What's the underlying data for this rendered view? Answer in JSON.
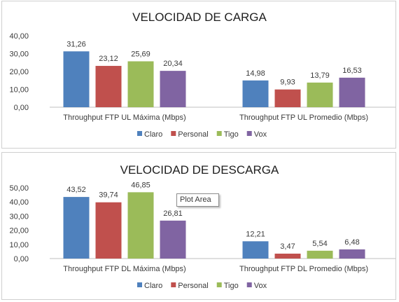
{
  "colors": {
    "Claro": "#4f81bd",
    "Personal": "#c0504d",
    "Tigo": "#9bbb59",
    "Vox": "#8064a2"
  },
  "tooltip": {
    "text": "Plot Area"
  },
  "chart_data": [
    {
      "type": "bar",
      "title": "VELOCIDAD DE CARGA",
      "categories": [
        "Throughput FTP UL Máxima (Mbps)",
        "Throughput FTP UL Promedio (Mbps)"
      ],
      "series": [
        {
          "name": "Claro",
          "values": [
            31.26,
            14.98
          ],
          "labels": [
            "31,26",
            "14,98"
          ]
        },
        {
          "name": "Personal",
          "values": [
            23.12,
            9.93
          ],
          "labels": [
            "23,12",
            "9,93"
          ]
        },
        {
          "name": "Tigo",
          "values": [
            25.69,
            13.79
          ],
          "labels": [
            "25,69",
            "13,79"
          ]
        },
        {
          "name": "Vox",
          "values": [
            20.34,
            16.53
          ],
          "labels": [
            "20,34",
            "16,53"
          ]
        }
      ],
      "ylim": [
        0,
        40
      ],
      "yticks": [
        "0,00",
        "10,00",
        "20,00",
        "30,00",
        "40,00"
      ],
      "grid": false,
      "legend": "bottom"
    },
    {
      "type": "bar",
      "title": "VELOCIDAD DE DESCARGA",
      "categories": [
        "Throughput FTP DL Máxima (Mbps)",
        "Throughput FTP DL Promedio (Mbps)"
      ],
      "series": [
        {
          "name": "Claro",
          "values": [
            43.52,
            12.21
          ],
          "labels": [
            "43,52",
            "12,21"
          ]
        },
        {
          "name": "Personal",
          "values": [
            39.74,
            3.47
          ],
          "labels": [
            "39,74",
            "3,47"
          ]
        },
        {
          "name": "Tigo",
          "values": [
            46.85,
            5.54
          ],
          "labels": [
            "46,85",
            "5,54"
          ]
        },
        {
          "name": "Vox",
          "values": [
            26.81,
            6.48
          ],
          "labels": [
            "26,81",
            "6,48"
          ]
        }
      ],
      "ylim": [
        0,
        50
      ],
      "yticks": [
        "0,00",
        "10,00",
        "20,00",
        "30,00",
        "40,00",
        "50,00"
      ],
      "grid": false,
      "legend": "bottom"
    }
  ]
}
